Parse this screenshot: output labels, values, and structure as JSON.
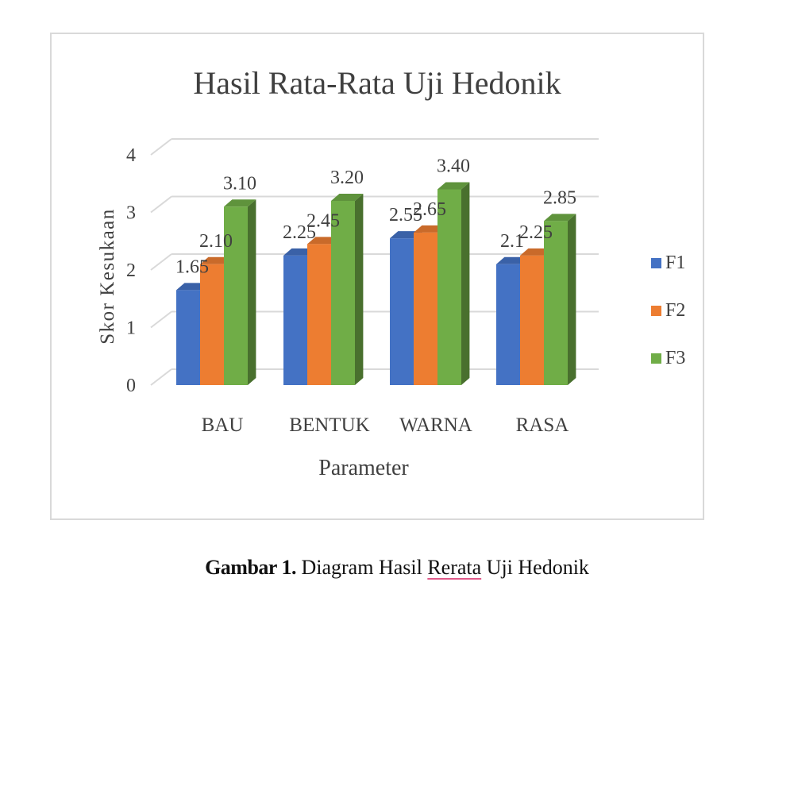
{
  "chart_data": {
    "type": "bar",
    "title": "Hasil Rata-Rata Uji Hedonik",
    "xlabel": "Parameter",
    "ylabel": "Skor Kesukaan",
    "categories": [
      "BAU",
      "BENTUK",
      "WARNA",
      "RASA"
    ],
    "ylim": [
      0,
      4
    ],
    "yticks": [
      0,
      1,
      2,
      3,
      4
    ],
    "grid": true,
    "legend_position": "right",
    "series": [
      {
        "name": "F1",
        "values": [
          1.65,
          2.25,
          2.55,
          2.1
        ],
        "labels": [
          "1.65",
          "2.25",
          "2.55",
          "2.1"
        ],
        "color": "#4472C4"
      },
      {
        "name": "F2",
        "values": [
          2.1,
          2.45,
          2.65,
          2.25
        ],
        "labels": [
          "2.10",
          "2.45",
          "2.65",
          "2.25"
        ],
        "color": "#ED7D31"
      },
      {
        "name": "F3",
        "values": [
          3.1,
          3.2,
          3.4,
          2.85
        ],
        "labels": [
          "3.10",
          "3.20",
          "3.40",
          "2.85"
        ],
        "color": "#70AD47"
      }
    ]
  },
  "caption": {
    "prefix": "Gambar 1.",
    "text_before": " Diagram Hasil ",
    "underlined": "Rerata",
    "text_after": " Uji Hedonik"
  }
}
